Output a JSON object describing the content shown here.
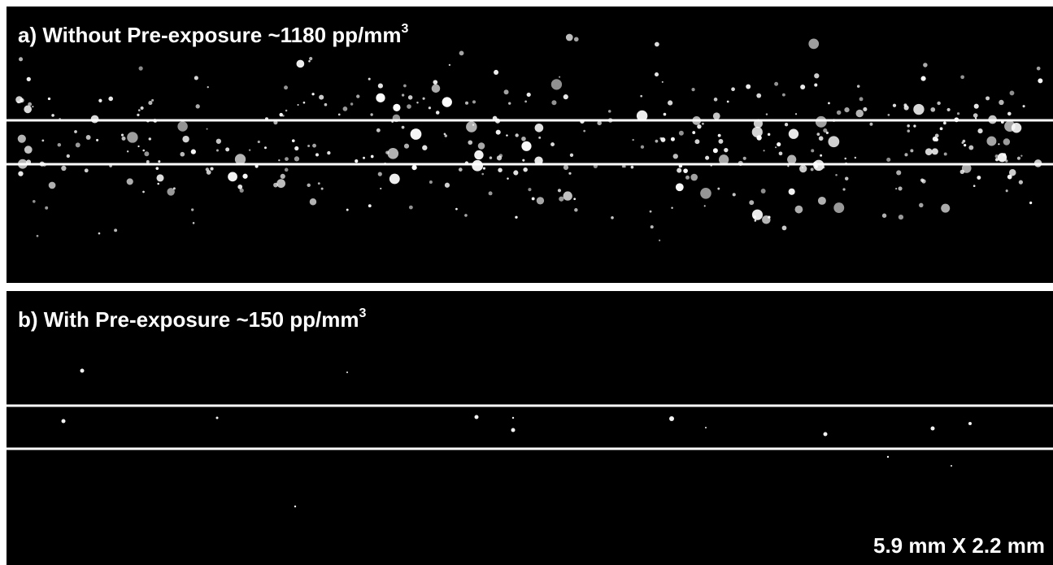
{
  "panels": [
    {
      "label": "a) Without Pre-exposure ~1180 pp/mm",
      "superscript": "3"
    },
    {
      "label": "b) With Pre-exposure ~150 pp/mm",
      "superscript": "3"
    }
  ],
  "scale_label": "5.9 mm X 2.2 mm"
}
